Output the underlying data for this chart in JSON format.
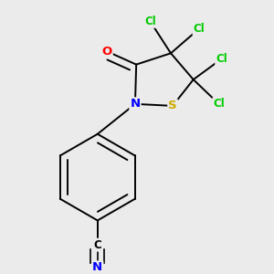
{
  "background_color": "#ebebeb",
  "bond_color": "#000000",
  "atom_colors": {
    "O": "#ff0000",
    "N": "#0000ff",
    "S": "#ccaa00",
    "Cl": "#00cc00",
    "C": "#000000",
    "N_nitrile": "#0000ff"
  },
  "font_size": 8.5,
  "line_width": 1.4
}
